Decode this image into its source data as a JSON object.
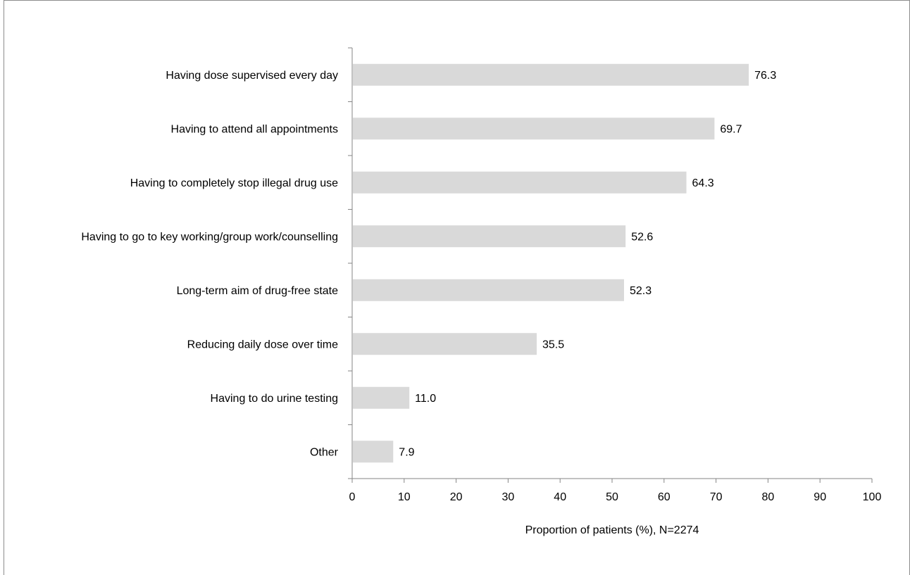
{
  "chart_data": {
    "type": "bar",
    "orientation": "horizontal",
    "categories": [
      "Having dose supervised every day",
      "Having to attend all appointments",
      "Having to completely stop illegal drug use",
      "Having to go to key working/group work/counselling",
      "Long-term aim of drug-free state",
      "Reducing daily dose over time",
      "Having to do urine testing",
      "Other"
    ],
    "values": [
      76.3,
      69.7,
      64.3,
      52.6,
      52.3,
      35.5,
      11.0,
      7.9
    ],
    "value_labels": [
      "76.3",
      "69.7",
      "64.3",
      "52.6",
      "52.3",
      "35.5",
      "11.0",
      "7.9"
    ],
    "title": "",
    "xlabel": "Proportion of patients (%), N=2274",
    "ylabel": "",
    "xlim": [
      0,
      100
    ],
    "xticks": [
      "0",
      "10",
      "20",
      "30",
      "40",
      "50",
      "60",
      "70",
      "80",
      "90",
      "100"
    ],
    "grid": false,
    "legend": "none",
    "bar_color": "#d9d9d9",
    "axis_color": "#868686"
  }
}
